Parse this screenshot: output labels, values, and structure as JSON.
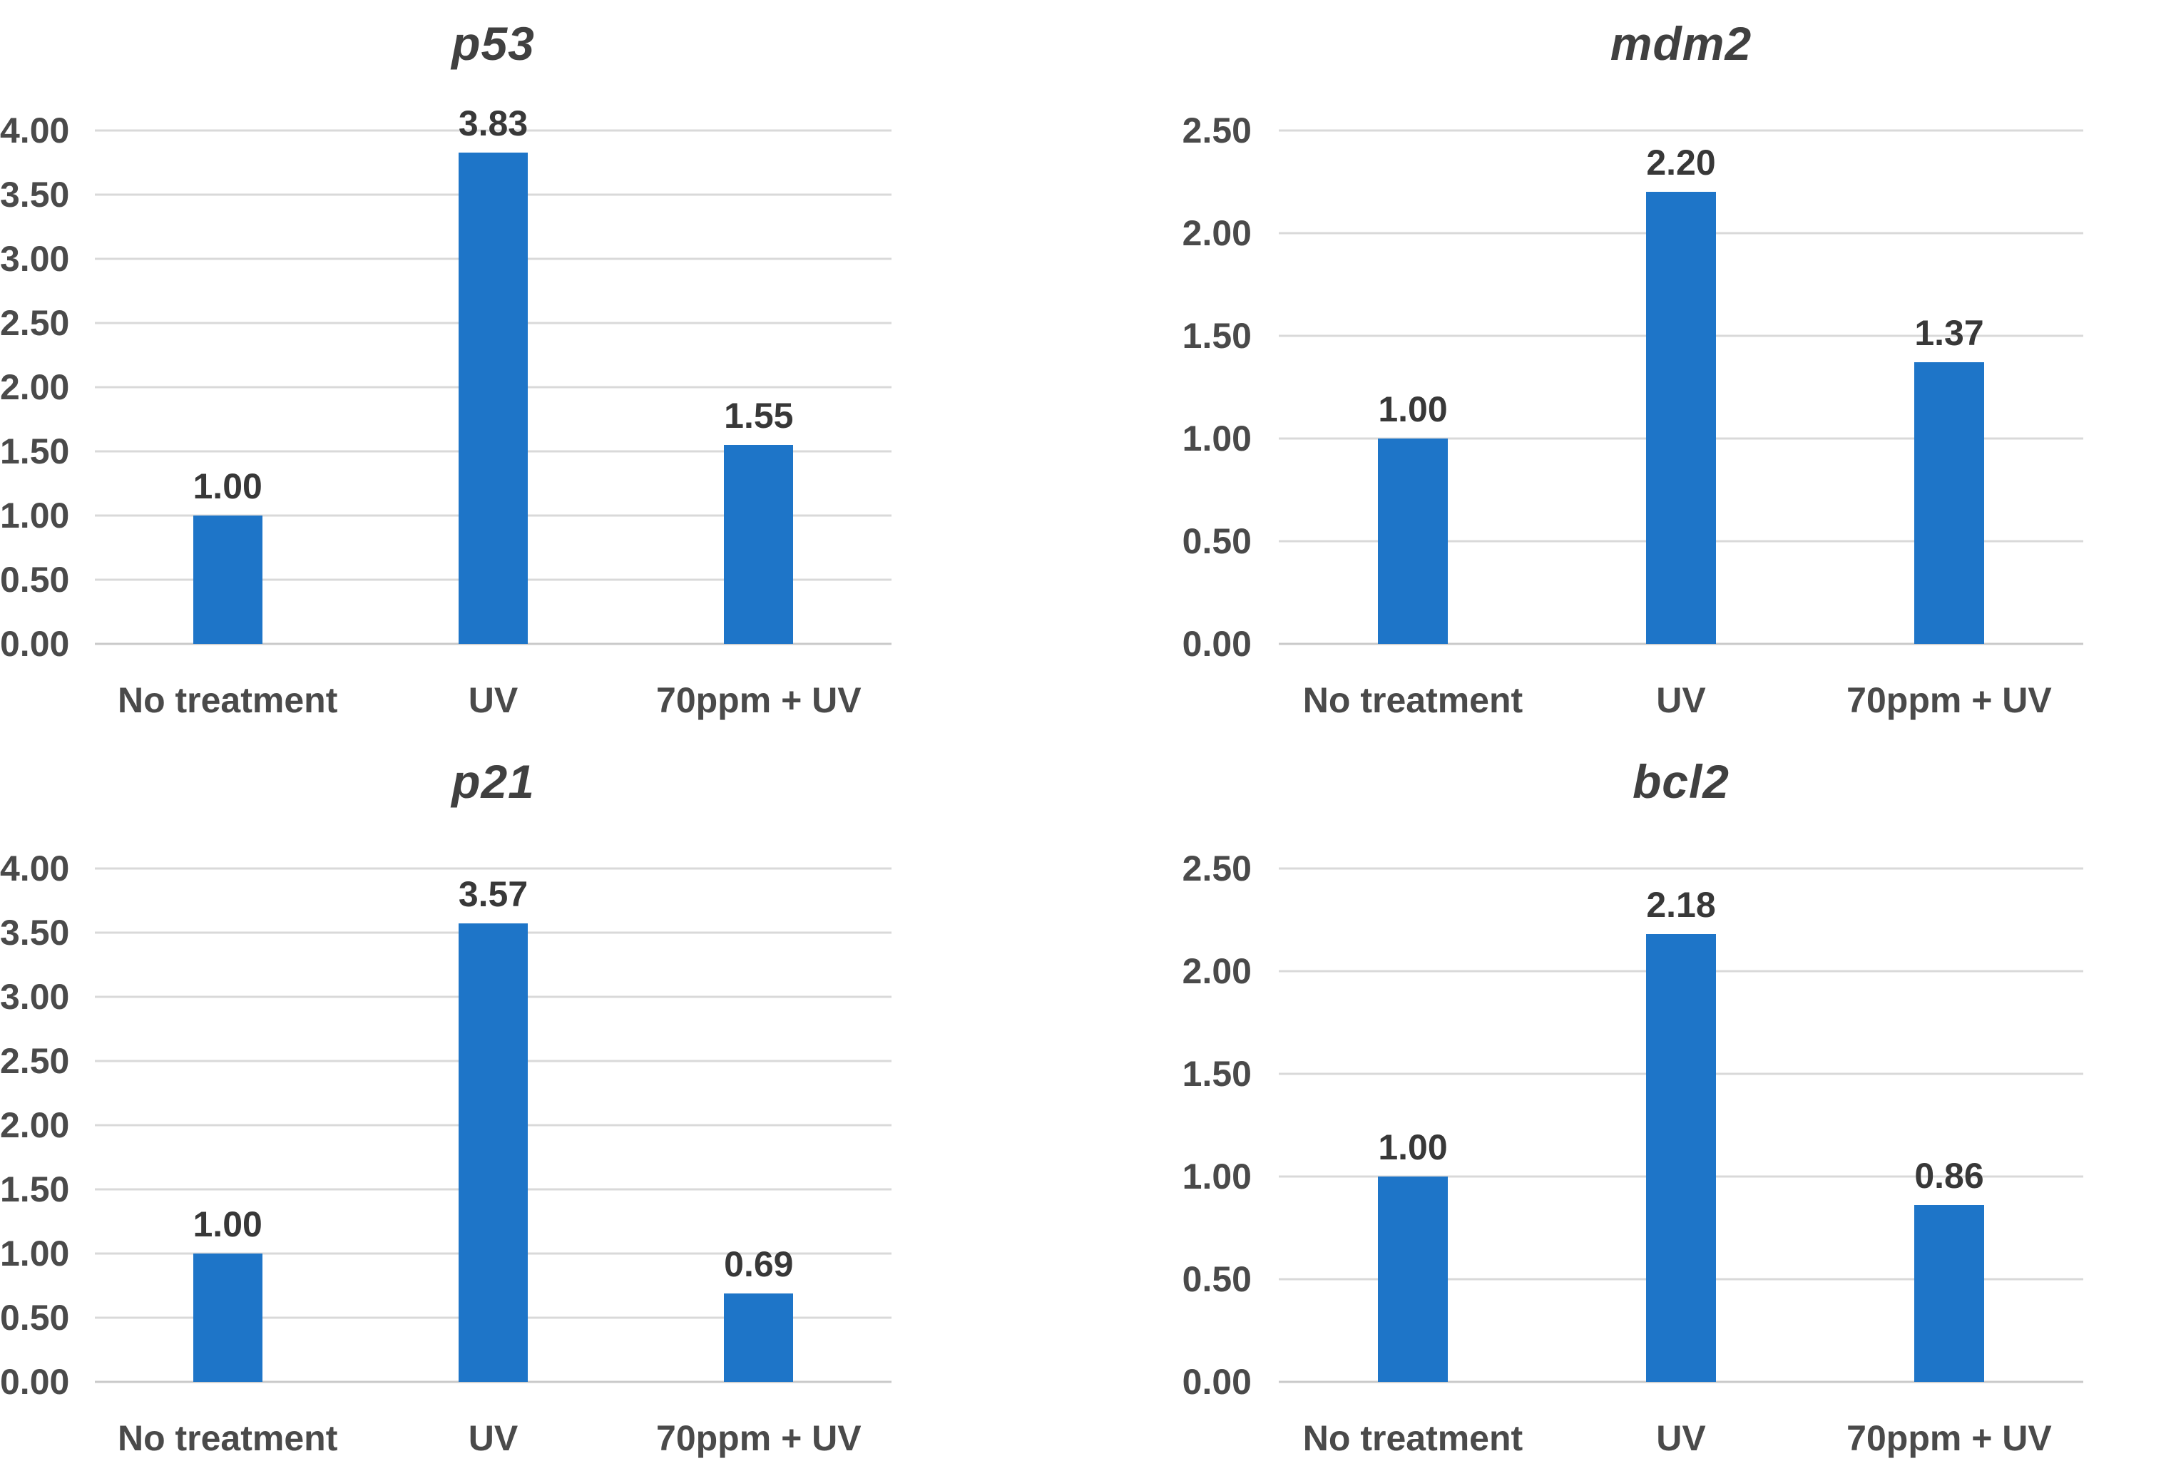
{
  "palette": {
    "bar_color": "#1e75c8",
    "gridline_color": "#d9d9d9",
    "axis_line_color": "#c9c9c9",
    "tick_label_color": "#4a4a4a",
    "category_label_color": "#4a4a4a",
    "data_label_color": "#383838",
    "title_color": "#404040"
  },
  "chart_data": [
    {
      "type": "bar",
      "title": "p53",
      "categories": [
        "No treatment",
        "UV",
        "70ppm + UV"
      ],
      "values": [
        1.0,
        3.83,
        1.55
      ],
      "data_labels": [
        "1.00",
        "3.83",
        "1.55"
      ],
      "xlabel": "",
      "ylabel": "",
      "ylim": [
        0,
        4.0
      ],
      "ytick_step": 0.5,
      "ytick_labels": [
        "0.00",
        "0.50",
        "1.00",
        "1.50",
        "2.00",
        "2.50",
        "3.00",
        "3.50",
        "4.00"
      ],
      "grid": true,
      "legend": "none"
    },
    {
      "type": "bar",
      "title": "mdm2",
      "categories": [
        "No treatment",
        "UV",
        "70ppm + UV"
      ],
      "values": [
        1.0,
        2.2,
        1.37
      ],
      "data_labels": [
        "1.00",
        "2.20",
        "1.37"
      ],
      "xlabel": "",
      "ylabel": "",
      "ylim": [
        0,
        2.5
      ],
      "ytick_step": 0.5,
      "ytick_labels": [
        "0.00",
        "0.50",
        "1.00",
        "1.50",
        "2.00",
        "2.50"
      ],
      "grid": true,
      "legend": "none"
    },
    {
      "type": "bar",
      "title": "p21",
      "categories": [
        "No treatment",
        "UV",
        "70ppm + UV"
      ],
      "values": [
        1.0,
        3.57,
        0.69
      ],
      "data_labels": [
        "1.00",
        "3.57",
        "0.69"
      ],
      "xlabel": "",
      "ylabel": "",
      "ylim": [
        0,
        4.0
      ],
      "ytick_step": 0.5,
      "ytick_labels": [
        "0.00",
        "0.50",
        "1.00",
        "1.50",
        "2.00",
        "2.50",
        "3.00",
        "3.50",
        "4.00"
      ],
      "grid": true,
      "legend": "none"
    },
    {
      "type": "bar",
      "title": "bcl2",
      "categories": [
        "No treatment",
        "UV",
        "70ppm + UV"
      ],
      "values": [
        1.0,
        2.18,
        0.86
      ],
      "data_labels": [
        "1.00",
        "2.18",
        "0.86"
      ],
      "xlabel": "",
      "ylabel": "",
      "ylim": [
        0,
        2.5
      ],
      "ytick_step": 0.5,
      "ytick_labels": [
        "0.00",
        "0.50",
        "1.00",
        "1.50",
        "2.00",
        "2.50"
      ],
      "grid": true,
      "legend": "none"
    }
  ]
}
